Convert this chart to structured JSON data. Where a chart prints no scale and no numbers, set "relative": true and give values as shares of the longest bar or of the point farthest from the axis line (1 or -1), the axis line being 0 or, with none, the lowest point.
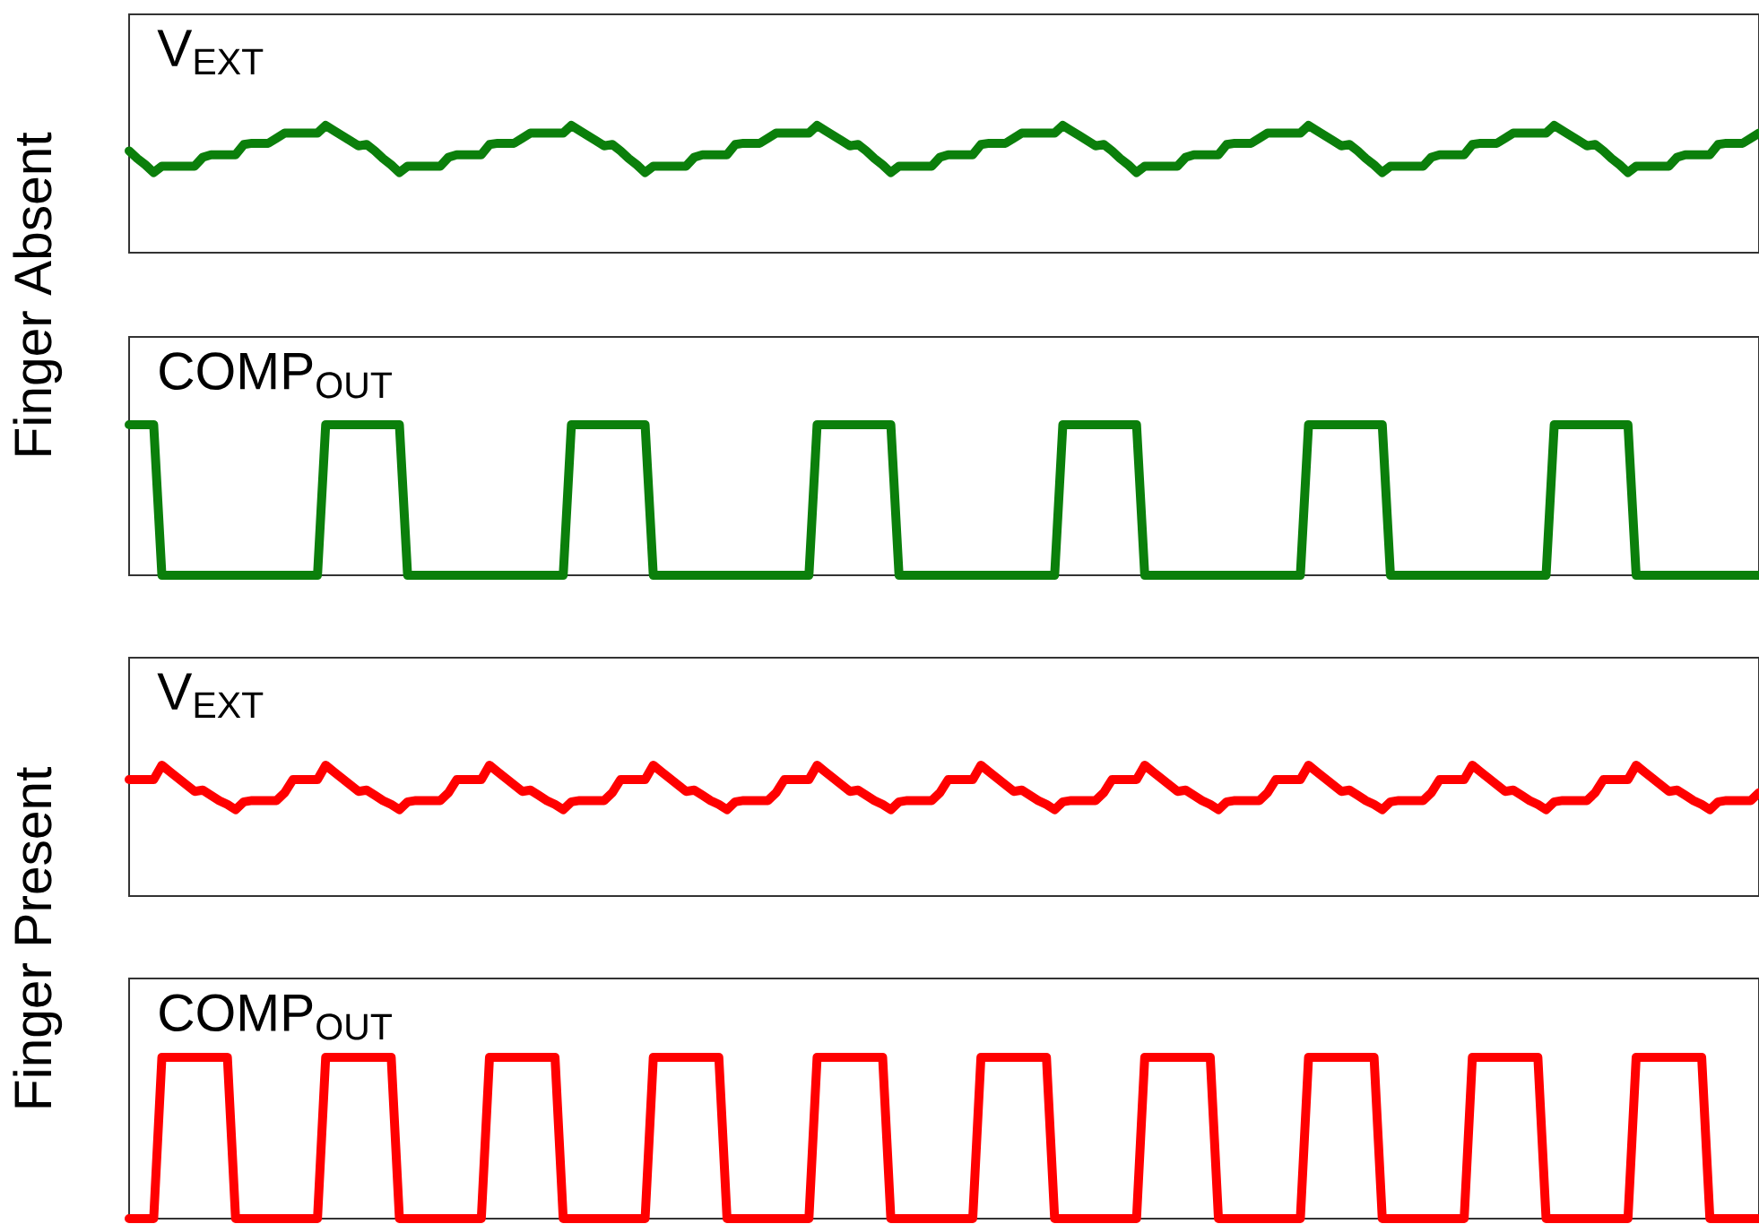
{
  "chart_data": [
    {
      "type": "line",
      "title": "V$_{EXT}$",
      "ylabel": "Finger Absent",
      "relative": true,
      "tick_labels": false,
      "color": "#0b7f0b",
      "categories": [
        null,
        null,
        null,
        null,
        null,
        null,
        null,
        null,
        null,
        null,
        null,
        null,
        null,
        null,
        null,
        null,
        null,
        null,
        null,
        null,
        null,
        null,
        null,
        null,
        null,
        null,
        null,
        null,
        null,
        null,
        null,
        null,
        null,
        null,
        null,
        null,
        null,
        null,
        null,
        null,
        null,
        null,
        null,
        null,
        null,
        null,
        null,
        null,
        null,
        null,
        null,
        null,
        null,
        null,
        null,
        null,
        null,
        null,
        null,
        null,
        null,
        null,
        null,
        null,
        null,
        null,
        null,
        null,
        null,
        null,
        null,
        null,
        null,
        null,
        null,
        null,
        null,
        null,
        null,
        null,
        null,
        null,
        null,
        null,
        null,
        null,
        null,
        null,
        null,
        null,
        null,
        null,
        null,
        null,
        null,
        null,
        null,
        null,
        null,
        null,
        null,
        null,
        null,
        null,
        null,
        null,
        null,
        null,
        null,
        null,
        null,
        null,
        null,
        null,
        null,
        null,
        null,
        null,
        null,
        null,
        null,
        null,
        null,
        null,
        null,
        null,
        null,
        null,
        null,
        null,
        null,
        null,
        null,
        null,
        null,
        null,
        null,
        null,
        null,
        null,
        null,
        null,
        null,
        null,
        null,
        null,
        null,
        null,
        null,
        null,
        null,
        null,
        null,
        null,
        null,
        null,
        null,
        null,
        null,
        null,
        null,
        null,
        null,
        null,
        null,
        null,
        null,
        null,
        null,
        null,
        null,
        null,
        null,
        null,
        null,
        null,
        null,
        null,
        null,
        null,
        null,
        null,
        null,
        null,
        null,
        null,
        null,
        null,
        null,
        null,
        null,
        null,
        null,
        null,
        null,
        null,
        null,
        null,
        null,
        null
      ],
      "values": [
        0.8,
        0.74,
        0.69,
        0.63,
        0.68,
        0.68,
        0.68,
        0.68,
        0.68,
        0.75,
        0.77,
        0.77,
        0.77,
        0.77,
        0.85,
        0.86,
        0.86,
        0.86,
        0.9,
        0.94,
        0.94,
        0.94,
        0.94,
        0.94,
        1,
        0.96,
        0.92,
        0.88,
        0.84,
        0.85,
        0.8,
        0.74,
        0.69,
        0.63,
        0.68,
        0.68,
        0.68,
        0.68,
        0.68,
        0.75,
        0.77,
        0.77,
        0.77,
        0.77,
        0.85,
        0.86,
        0.86,
        0.86,
        0.9,
        0.94,
        0.94,
        0.94,
        0.94,
        0.94,
        1,
        0.96,
        0.92,
        0.88,
        0.84,
        0.85,
        0.8,
        0.74,
        0.69,
        0.63,
        0.68,
        0.68,
        0.68,
        0.68,
        0.68,
        0.75,
        0.77,
        0.77,
        0.77,
        0.77,
        0.85,
        0.86,
        0.86,
        0.86,
        0.9,
        0.94,
        0.94,
        0.94,
        0.94,
        0.94,
        1,
        0.96,
        0.92,
        0.88,
        0.84,
        0.85,
        0.8,
        0.74,
        0.69,
        0.63,
        0.68,
        0.68,
        0.68,
        0.68,
        0.68,
        0.75,
        0.77,
        0.77,
        0.77,
        0.77,
        0.85,
        0.86,
        0.86,
        0.86,
        0.9,
        0.94,
        0.94,
        0.94,
        0.94,
        0.94,
        1,
        0.96,
        0.92,
        0.88,
        0.84,
        0.85,
        0.8,
        0.74,
        0.69,
        0.63,
        0.68,
        0.68,
        0.68,
        0.68,
        0.68,
        0.75,
        0.77,
        0.77,
        0.77,
        0.77,
        0.85,
        0.86,
        0.86,
        0.86,
        0.9,
        0.94,
        0.94,
        0.94,
        0.94,
        0.94,
        1,
        0.96,
        0.92,
        0.88,
        0.84,
        0.85,
        0.8,
        0.74,
        0.69,
        0.63,
        0.68,
        0.68,
        0.68,
        0.68,
        0.68,
        0.75,
        0.77,
        0.77,
        0.77,
        0.77,
        0.85,
        0.86,
        0.86,
        0.86,
        0.9,
        0.94,
        0.94,
        0.94,
        0.94,
        0.94,
        1,
        0.96,
        0.92,
        0.88,
        0.84,
        0.85,
        0.8,
        0.74,
        0.69,
        0.63,
        0.68,
        0.68,
        0.68,
        0.68,
        0.68,
        0.75,
        0.77,
        0.77,
        0.77,
        0.77,
        0.85,
        0.86,
        0.86,
        0.86,
        0.9,
        0.94
      ]
    },
    {
      "type": "line",
      "title": "COMP$_{OUT}$",
      "relative": true,
      "tick_labels": false,
      "color": "#0b7f0b",
      "categories": [
        null,
        null,
        null,
        null,
        null,
        null,
        null,
        null,
        null,
        null,
        null,
        null,
        null,
        null,
        null,
        null,
        null,
        null,
        null,
        null,
        null,
        null,
        null,
        null,
        null,
        null,
        null,
        null,
        null,
        null,
        null,
        null,
        null,
        null,
        null,
        null,
        null,
        null,
        null,
        null,
        null,
        null,
        null,
        null,
        null,
        null,
        null,
        null,
        null,
        null,
        null,
        null,
        null,
        null,
        null,
        null,
        null,
        null,
        null,
        null,
        null,
        null,
        null,
        null,
        null,
        null,
        null,
        null,
        null,
        null,
        null,
        null,
        null,
        null,
        null,
        null,
        null,
        null,
        null,
        null,
        null,
        null,
        null,
        null,
        null,
        null,
        null,
        null,
        null,
        null,
        null,
        null,
        null,
        null,
        null,
        null,
        null,
        null,
        null,
        null,
        null,
        null,
        null,
        null,
        null,
        null,
        null,
        null,
        null,
        null,
        null,
        null,
        null,
        null,
        null,
        null,
        null,
        null,
        null,
        null,
        null,
        null,
        null,
        null,
        null,
        null,
        null,
        null,
        null,
        null,
        null,
        null,
        null,
        null,
        null,
        null,
        null,
        null,
        null,
        null,
        null,
        null,
        null,
        null,
        null,
        null,
        null,
        null,
        null,
        null,
        null,
        null,
        null,
        null,
        null,
        null,
        null,
        null,
        null,
        null,
        null,
        null,
        null,
        null,
        null,
        null,
        null,
        null,
        null,
        null,
        null,
        null,
        null,
        null,
        null,
        null,
        null,
        null,
        null,
        null,
        null,
        null,
        null,
        null,
        null,
        null,
        null,
        null,
        null,
        null,
        null,
        null,
        null,
        null,
        null,
        null,
        null,
        null,
        null,
        null
      ],
      "values": [
        1,
        1,
        1,
        1,
        0,
        0,
        0,
        0,
        0,
        0,
        0,
        0,
        0,
        0,
        0,
        0,
        0,
        0,
        0,
        0,
        0,
        0,
        0,
        0,
        1,
        1,
        1,
        1,
        1,
        1,
        1,
        1,
        1,
        1,
        0,
        0,
        0,
        0,
        0,
        0,
        0,
        0,
        0,
        0,
        0,
        0,
        0,
        0,
        0,
        0,
        0,
        0,
        0,
        0,
        1,
        1,
        1,
        1,
        1,
        1,
        1,
        1,
        1,
        1,
        0,
        0,
        0,
        0,
        0,
        0,
        0,
        0,
        0,
        0,
        0,
        0,
        0,
        0,
        0,
        0,
        0,
        0,
        0,
        0,
        1,
        1,
        1,
        1,
        1,
        1,
        1,
        1,
        1,
        1,
        0,
        0,
        0,
        0,
        0,
        0,
        0,
        0,
        0,
        0,
        0,
        0,
        0,
        0,
        0,
        0,
        0,
        0,
        0,
        0,
        1,
        1,
        1,
        1,
        1,
        1,
        1,
        1,
        1,
        1,
        0,
        0,
        0,
        0,
        0,
        0,
        0,
        0,
        0,
        0,
        0,
        0,
        0,
        0,
        0,
        0,
        0,
        0,
        0,
        0,
        1,
        1,
        1,
        1,
        1,
        1,
        1,
        1,
        1,
        1,
        0,
        0,
        0,
        0,
        0,
        0,
        0,
        0,
        0,
        0,
        0,
        0,
        0,
        0,
        0,
        0,
        0,
        0,
        0,
        0,
        1,
        1,
        1,
        1,
        1,
        1,
        1,
        1,
        1,
        1,
        0,
        0,
        0,
        0,
        0,
        0,
        0,
        0,
        0,
        0,
        0,
        0,
        0,
        0,
        0,
        0
      ]
    },
    {
      "type": "line",
      "title": "V$_{EXT}$",
      "ylabel": "Finger Present",
      "relative": true,
      "tick_labels": false,
      "color": "#ff0000",
      "categories": [
        null,
        null,
        null,
        null,
        null,
        null,
        null,
        null,
        null,
        null,
        null,
        null,
        null,
        null,
        null,
        null,
        null,
        null,
        null,
        null,
        null,
        null,
        null,
        null,
        null,
        null,
        null,
        null,
        null,
        null,
        null,
        null,
        null,
        null,
        null,
        null,
        null,
        null,
        null,
        null,
        null,
        null,
        null,
        null,
        null,
        null,
        null,
        null,
        null,
        null,
        null,
        null,
        null,
        null,
        null,
        null,
        null,
        null,
        null,
        null,
        null,
        null,
        null,
        null,
        null,
        null,
        null,
        null,
        null,
        null,
        null,
        null,
        null,
        null,
        null,
        null,
        null,
        null,
        null,
        null,
        null,
        null,
        null,
        null,
        null,
        null,
        null,
        null,
        null,
        null,
        null,
        null,
        null,
        null,
        null,
        null,
        null,
        null,
        null,
        null,
        null,
        null,
        null,
        null,
        null,
        null,
        null,
        null,
        null,
        null,
        null,
        null,
        null,
        null,
        null,
        null,
        null,
        null,
        null,
        null,
        null,
        null,
        null,
        null,
        null,
        null,
        null,
        null,
        null,
        null,
        null,
        null,
        null,
        null,
        null,
        null,
        null,
        null,
        null,
        null,
        null,
        null,
        null,
        null,
        null,
        null,
        null,
        null,
        null,
        null,
        null,
        null,
        null,
        null,
        null,
        null,
        null,
        null,
        null,
        null,
        null,
        null,
        null,
        null,
        null,
        null,
        null,
        null,
        null,
        null,
        null,
        null,
        null,
        null,
        null,
        null,
        null,
        null,
        null,
        null,
        null,
        null,
        null,
        null,
        null,
        null,
        null,
        null,
        null,
        null,
        null,
        null,
        null,
        null,
        null,
        null,
        null,
        null,
        null,
        null
      ],
      "values": [
        0.89,
        0.89,
        0.89,
        0.89,
        1,
        0.95,
        0.9,
        0.85,
        0.8,
        0.81,
        0.77,
        0.73,
        0.7,
        0.66,
        0.72,
        0.73,
        0.73,
        0.73,
        0.73,
        0.79,
        0.89,
        0.89,
        0.89,
        0.89,
        1,
        0.95,
        0.9,
        0.85,
        0.8,
        0.81,
        0.77,
        0.73,
        0.7,
        0.66,
        0.72,
        0.73,
        0.73,
        0.73,
        0.73,
        0.79,
        0.89,
        0.89,
        0.89,
        0.89,
        1,
        0.95,
        0.9,
        0.85,
        0.8,
        0.81,
        0.77,
        0.73,
        0.7,
        0.66,
        0.72,
        0.73,
        0.73,
        0.73,
        0.73,
        0.79,
        0.89,
        0.89,
        0.89,
        0.89,
        1,
        0.95,
        0.9,
        0.85,
        0.8,
        0.81,
        0.77,
        0.73,
        0.7,
        0.66,
        0.72,
        0.73,
        0.73,
        0.73,
        0.73,
        0.79,
        0.89,
        0.89,
        0.89,
        0.89,
        1,
        0.95,
        0.9,
        0.85,
        0.8,
        0.81,
        0.77,
        0.73,
        0.7,
        0.66,
        0.72,
        0.73,
        0.73,
        0.73,
        0.73,
        0.79,
        0.89,
        0.89,
        0.89,
        0.89,
        1,
        0.95,
        0.9,
        0.85,
        0.8,
        0.81,
        0.77,
        0.73,
        0.7,
        0.66,
        0.72,
        0.73,
        0.73,
        0.73,
        0.73,
        0.79,
        0.89,
        0.89,
        0.89,
        0.89,
        1,
        0.95,
        0.9,
        0.85,
        0.8,
        0.81,
        0.77,
        0.73,
        0.7,
        0.66,
        0.72,
        0.73,
        0.73,
        0.73,
        0.73,
        0.79,
        0.89,
        0.89,
        0.89,
        0.89,
        1,
        0.95,
        0.9,
        0.85,
        0.8,
        0.81,
        0.77,
        0.73,
        0.7,
        0.66,
        0.72,
        0.73,
        0.73,
        0.73,
        0.73,
        0.79,
        0.89,
        0.89,
        0.89,
        0.89,
        1,
        0.95,
        0.9,
        0.85,
        0.8,
        0.81,
        0.77,
        0.73,
        0.7,
        0.66,
        0.72,
        0.73,
        0.73,
        0.73,
        0.73,
        0.79,
        0.89,
        0.89,
        0.89,
        0.89,
        1,
        0.95,
        0.9,
        0.85,
        0.8,
        0.81,
        0.77,
        0.73,
        0.7,
        0.66,
        0.72,
        0.73,
        0.73,
        0.73,
        0.73,
        0.79
      ]
    },
    {
      "type": "line",
      "title": "COMP$_{OUT}$",
      "relative": true,
      "tick_labels": false,
      "color": "#ff0000",
      "categories": [
        null,
        null,
        null,
        null,
        null,
        null,
        null,
        null,
        null,
        null,
        null,
        null,
        null,
        null,
        null,
        null,
        null,
        null,
        null,
        null,
        null,
        null,
        null,
        null,
        null,
        null,
        null,
        null,
        null,
        null,
        null,
        null,
        null,
        null,
        null,
        null,
        null,
        null,
        null,
        null,
        null,
        null,
        null,
        null,
        null,
        null,
        null,
        null,
        null,
        null,
        null,
        null,
        null,
        null,
        null,
        null,
        null,
        null,
        null,
        null,
        null,
        null,
        null,
        null,
        null,
        null,
        null,
        null,
        null,
        null,
        null,
        null,
        null,
        null,
        null,
        null,
        null,
        null,
        null,
        null,
        null,
        null,
        null,
        null,
        null,
        null,
        null,
        null,
        null,
        null,
        null,
        null,
        null,
        null,
        null,
        null,
        null,
        null,
        null,
        null,
        null,
        null,
        null,
        null,
        null,
        null,
        null,
        null,
        null,
        null,
        null,
        null,
        null,
        null,
        null,
        null,
        null,
        null,
        null,
        null,
        null,
        null,
        null,
        null,
        null,
        null,
        null,
        null,
        null,
        null,
        null,
        null,
        null,
        null,
        null,
        null,
        null,
        null,
        null,
        null,
        null,
        null,
        null,
        null,
        null,
        null,
        null,
        null,
        null,
        null,
        null,
        null,
        null,
        null,
        null,
        null,
        null,
        null,
        null,
        null,
        null,
        null,
        null,
        null,
        null,
        null,
        null,
        null,
        null,
        null,
        null,
        null,
        null,
        null,
        null,
        null,
        null,
        null,
        null,
        null,
        null,
        null,
        null,
        null,
        null,
        null,
        null,
        null,
        null,
        null,
        null,
        null,
        null,
        null,
        null,
        null,
        null,
        null,
        null,
        null
      ],
      "values": [
        0,
        0,
        0,
        0,
        1,
        1,
        1,
        1,
        1,
        1,
        1,
        1,
        1,
        0,
        0,
        0,
        0,
        0,
        0,
        0,
        0,
        0,
        0,
        0,
        1,
        1,
        1,
        1,
        1,
        1,
        1,
        1,
        1,
        0,
        0,
        0,
        0,
        0,
        0,
        0,
        0,
        0,
        0,
        0,
        1,
        1,
        1,
        1,
        1,
        1,
        1,
        1,
        1,
        0,
        0,
        0,
        0,
        0,
        0,
        0,
        0,
        0,
        0,
        0,
        1,
        1,
        1,
        1,
        1,
        1,
        1,
        1,
        1,
        0,
        0,
        0,
        0,
        0,
        0,
        0,
        0,
        0,
        0,
        0,
        1,
        1,
        1,
        1,
        1,
        1,
        1,
        1,
        1,
        0,
        0,
        0,
        0,
        0,
        0,
        0,
        0,
        0,
        0,
        0,
        1,
        1,
        1,
        1,
        1,
        1,
        1,
        1,
        1,
        0,
        0,
        0,
        0,
        0,
        0,
        0,
        0,
        0,
        0,
        0,
        1,
        1,
        1,
        1,
        1,
        1,
        1,
        1,
        1,
        0,
        0,
        0,
        0,
        0,
        0,
        0,
        0,
        0,
        0,
        0,
        1,
        1,
        1,
        1,
        1,
        1,
        1,
        1,
        1,
        0,
        0,
        0,
        0,
        0,
        0,
        0,
        0,
        0,
        0,
        0,
        1,
        1,
        1,
        1,
        1,
        1,
        1,
        1,
        1,
        0,
        0,
        0,
        0,
        0,
        0,
        0,
        0,
        0,
        0,
        0,
        1,
        1,
        1,
        1,
        1,
        1,
        1,
        1,
        1,
        0,
        0,
        0,
        0,
        0,
        0,
        0
      ]
    }
  ]
}
